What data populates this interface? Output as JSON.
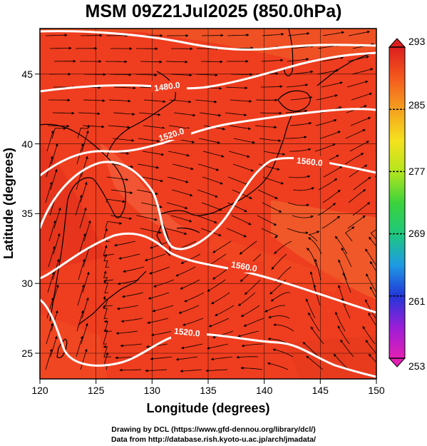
{
  "title": "MSM 09Z21Jul2025 (850.0hPa)",
  "map": {
    "xlabel": "Longitude (degrees)",
    "ylabel": "Latitude  (degrees)",
    "xticks": [
      "120",
      "125",
      "130",
      "135",
      "140",
      "145",
      "150"
    ],
    "yticks": [
      "25",
      "30",
      "35",
      "40",
      "45"
    ],
    "xlim": [
      120,
      150
    ],
    "ylim": [
      22.5,
      47.6
    ],
    "field_color": "#ee3a1e",
    "contour_labels": [
      "1480.0",
      "1520.0",
      "1560.0",
      "1560.0",
      "1520.0"
    ]
  },
  "colorbar": {
    "min": 253,
    "max": 293,
    "ticks": [
      "293",
      "285",
      "277",
      "269",
      "261",
      "253"
    ],
    "colors": [
      "#e31fb4",
      "#9b1ed8",
      "#2236d8",
      "#1e9be3",
      "#1ec87d",
      "#3cd23c",
      "#b4e61e",
      "#f5e11e",
      "#f5a01e",
      "#f55a1e",
      "#dc1e1e"
    ]
  },
  "credits": {
    "line1": "Drawing by DCL (https://www.gfd-dennou.org/library/dcl/)",
    "line2": "Data from http://database.rish.kyoto-u.ac.jp/arch/jmadata/"
  }
}
